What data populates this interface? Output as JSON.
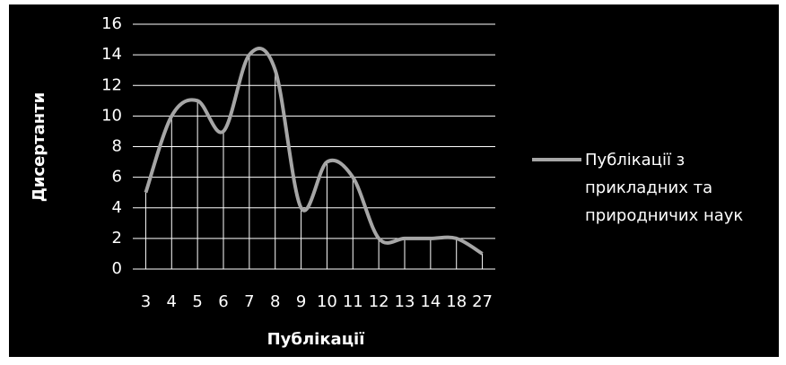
{
  "chart_data": {
    "type": "line",
    "x_label": "Публікації",
    "y_label": "Дисертанти",
    "categories": [
      "3",
      "4",
      "5",
      "6",
      "7",
      "8",
      "9",
      "10",
      "11",
      "12",
      "13",
      "14",
      "18",
      "27"
    ],
    "series": [
      {
        "name": "Публікації з прикладних та природничих наук",
        "color": "#a6a6a6",
        "values": [
          5,
          10,
          11,
          9,
          14,
          13,
          4,
          7,
          6,
          2,
          2,
          2,
          2,
          1
        ]
      }
    ],
    "ylim": [
      0,
      16
    ],
    "yticks": [
      0,
      2,
      4,
      6,
      8,
      10,
      12,
      14,
      16
    ],
    "grid": true,
    "legend": "right",
    "background": "#000000",
    "grid_color": "#ffffff"
  }
}
